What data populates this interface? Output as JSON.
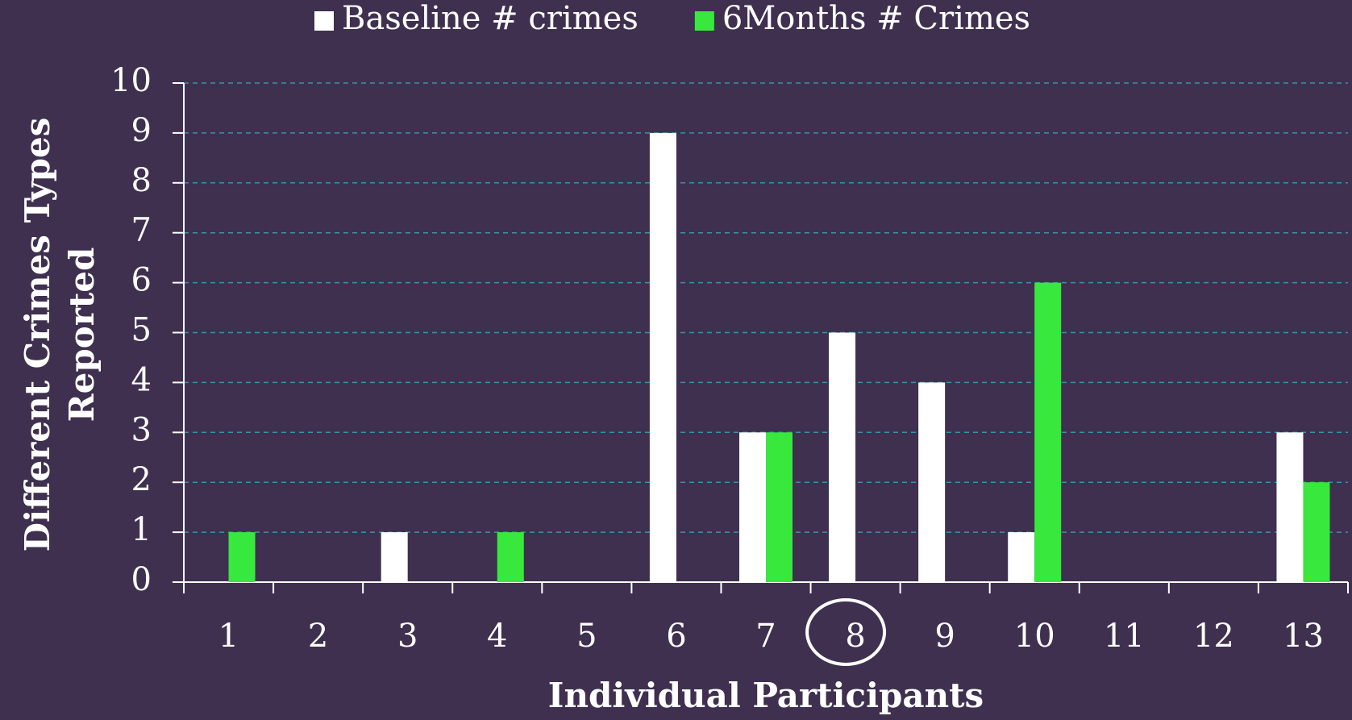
{
  "chart_data": {
    "type": "bar",
    "xlabel": "Individual Participants",
    "ylabel": [
      "Different Crimes Types",
      "Reported"
    ],
    "categories": [
      "1",
      "2",
      "3",
      "4",
      "5",
      "6",
      "7",
      "8",
      "9",
      "10",
      "11",
      "12",
      "13"
    ],
    "series": [
      {
        "name": "Baseline # crimes",
        "color": "#ffffff",
        "values": [
          0,
          0,
          1,
          0,
          0,
          9,
          3,
          5,
          4,
          1,
          0,
          0,
          3
        ]
      },
      {
        "name": "6Months # Crimes",
        "color": "#39e83c",
        "values": [
          1,
          0,
          0,
          1,
          0,
          0,
          3,
          0,
          0,
          6,
          0,
          0,
          2
        ]
      }
    ],
    "ylim": [
      0,
      10
    ],
    "yticks": [
      0,
      1,
      2,
      3,
      4,
      5,
      6,
      7,
      8,
      9,
      10
    ],
    "grid": true,
    "legend": "top"
  }
}
